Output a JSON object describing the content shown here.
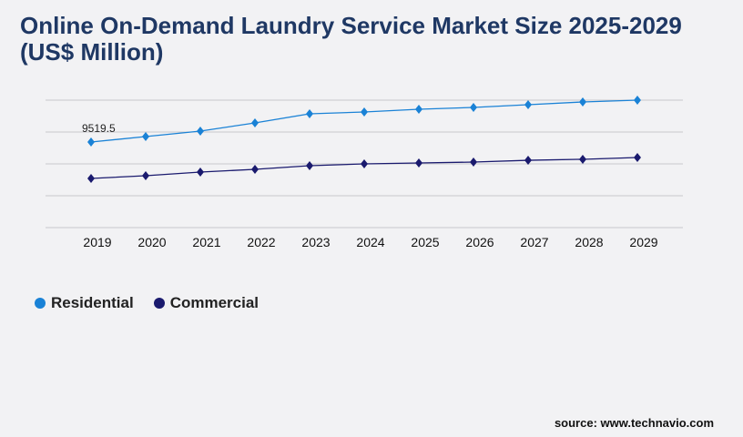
{
  "chart_data": {
    "type": "line",
    "title": "Online On-Demand Laundry Service Market Size 2025-2029 (US$ Million)",
    "categories": [
      "2019",
      "2020",
      "2021",
      "2022",
      "2023",
      "2024",
      "2025",
      "2026",
      "2027",
      "2028",
      "2029"
    ],
    "series": [
      {
        "name": "Residential",
        "color": "#1a82d6",
        "values": [
          9519.5,
          10130,
          10735,
          11650,
          12660,
          12860,
          13170,
          13370,
          13670,
          13980,
          14180
        ]
      },
      {
        "name": "Commercial",
        "color": "#1a1a6e",
        "values": [
          5470,
          5770,
          6180,
          6480,
          6890,
          7090,
          7190,
          7290,
          7490,
          7600,
          7800
        ]
      }
    ],
    "data_labels": [
      {
        "series": "Residential",
        "category": "2019",
        "text": "9519.5"
      }
    ],
    "ylim": [
      0,
      14180
    ],
    "grid": true,
    "legend": "bottom-left"
  },
  "source": "source: www.technavio.com"
}
